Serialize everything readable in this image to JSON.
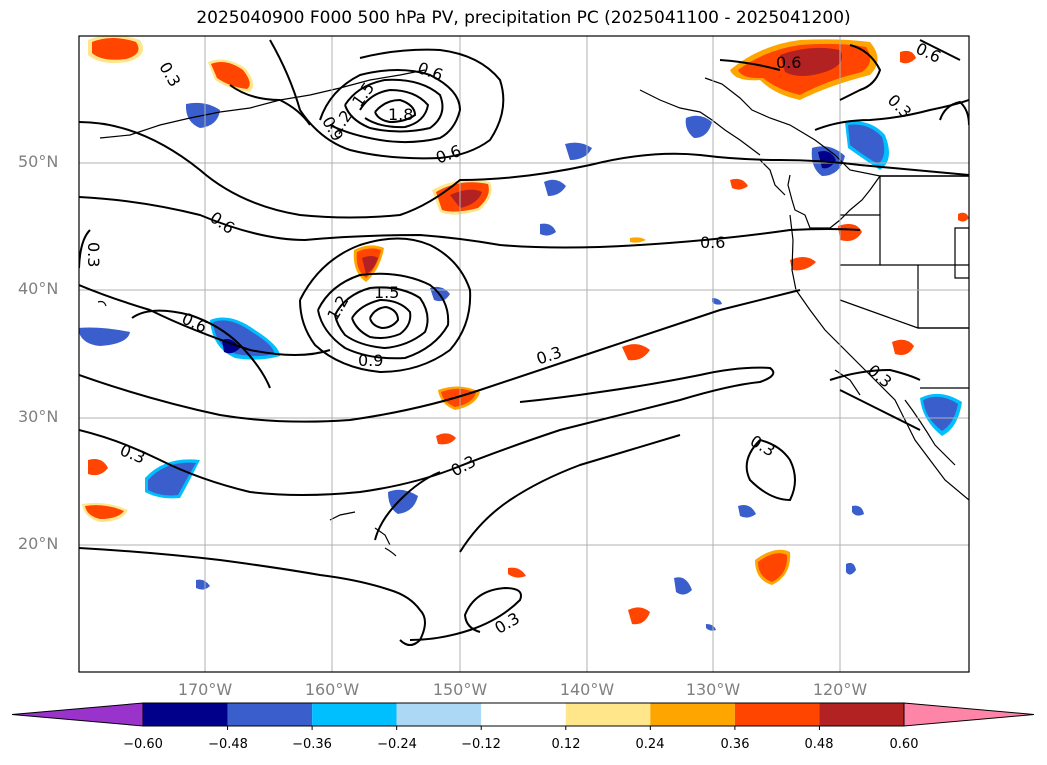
{
  "title": "2025040900 F000 500 hPa PV, precipitation PC (2025041100 - 2025041200)",
  "lat_labels": [
    "50°N",
    "40°N",
    "30°N",
    "20°N"
  ],
  "lon_labels": [
    "170°W",
    "160°W",
    "150°W",
    "140°W",
    "130°W",
    "120°W"
  ],
  "colorbar": {
    "ticks": [
      "−0.60",
      "−0.48",
      "−0.36",
      "−0.24",
      "−0.12",
      "0.12",
      "0.24",
      "0.36",
      "0.48",
      "0.60"
    ],
    "colors": [
      "#9933cc",
      "#00008b",
      "#3a5fcd",
      "#00bfff",
      "#add8f5",
      "#ffffff",
      "#ffe68a",
      "#ffa500",
      "#ff4500",
      "#b22222",
      "#ff85a8"
    ]
  },
  "contour_labels": [
    {
      "text": "0.3"
    },
    {
      "text": "1.2"
    },
    {
      "text": "1.5"
    },
    {
      "text": "1.8"
    },
    {
      "text": "0.9"
    },
    {
      "text": "0.6"
    },
    {
      "text": "0.6"
    },
    {
      "text": "0.3"
    },
    {
      "text": "0.6"
    },
    {
      "text": "1.5"
    },
    {
      "text": "1.2"
    },
    {
      "text": "0.9"
    },
    {
      "text": "0.3"
    },
    {
      "text": "0.3"
    },
    {
      "text": "0.3"
    },
    {
      "text": "0.6"
    },
    {
      "text": "0.6"
    },
    {
      "text": "0.3"
    },
    {
      "text": "0.3"
    },
    {
      "text": "0.6"
    },
    {
      "text": "0.3"
    },
    {
      "text": "0.3"
    },
    {
      "text": "0.6"
    }
  ]
}
